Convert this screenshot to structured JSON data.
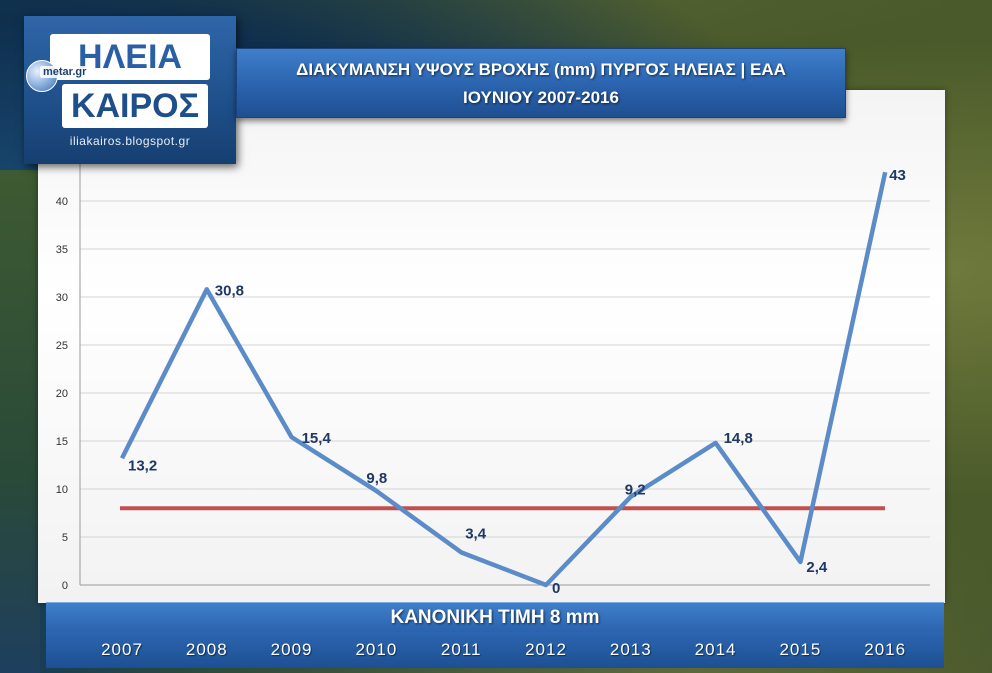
{
  "logo": {
    "title_top": "ΗΛΕΙΑ",
    "title_bottom": "ΚΑΙΡΟΣ",
    "metar": "metar.gr",
    "url": "iliakairos.blogspot.gr"
  },
  "header": {
    "title_line1": "ΔΙΑΚΥΜΑΝΣΗ ΥΨΟΥΣ ΒΡΟΧΗΣ (mm) ΠΥΡΓΟΣ ΗΛΕΙΑΣ | ΕΑΑ",
    "title_line2": "ΙΟΥΝΙΟΥ 2007-2016"
  },
  "normal_label": "ΚΑΝΟΝΙΚΗ ΤΙΜΗ 8 mm",
  "colors": {
    "series_line": "#5b8cc8",
    "normal_line": "#c0504d",
    "data_label": "#1f3864",
    "banner_blue": "#2a62ad"
  },
  "chart_data": {
    "type": "line",
    "title": "ΔΙΑΚΥΜΑΝΣΗ ΥΨΟΥΣ ΒΡΟΧΗΣ (mm) ΠΥΡΓΟΣ ΗΛΕΙΑΣ | ΕΑΑ ΙΟΥΝΙΟΥ 2007-2016",
    "categories": [
      "2007",
      "2008",
      "2009",
      "2010",
      "2011",
      "2012",
      "2013",
      "2014",
      "2015",
      "2016"
    ],
    "series": [
      {
        "values": [
          13.2,
          30.8,
          15.4,
          9.8,
          3.4,
          0,
          9.2,
          14.8,
          2.4,
          43
        ],
        "data_labels": [
          "13,2",
          "30,8",
          "15,4",
          "9,8",
          "3,4",
          "0",
          "9,2",
          "14,8",
          "2,4",
          "43"
        ]
      }
    ],
    "reference_line": {
      "value": 8
    },
    "ylim": [
      0,
      45
    ],
    "yticks": [
      0,
      5,
      10,
      15,
      20,
      25,
      30,
      35,
      40
    ],
    "grid": true
  }
}
